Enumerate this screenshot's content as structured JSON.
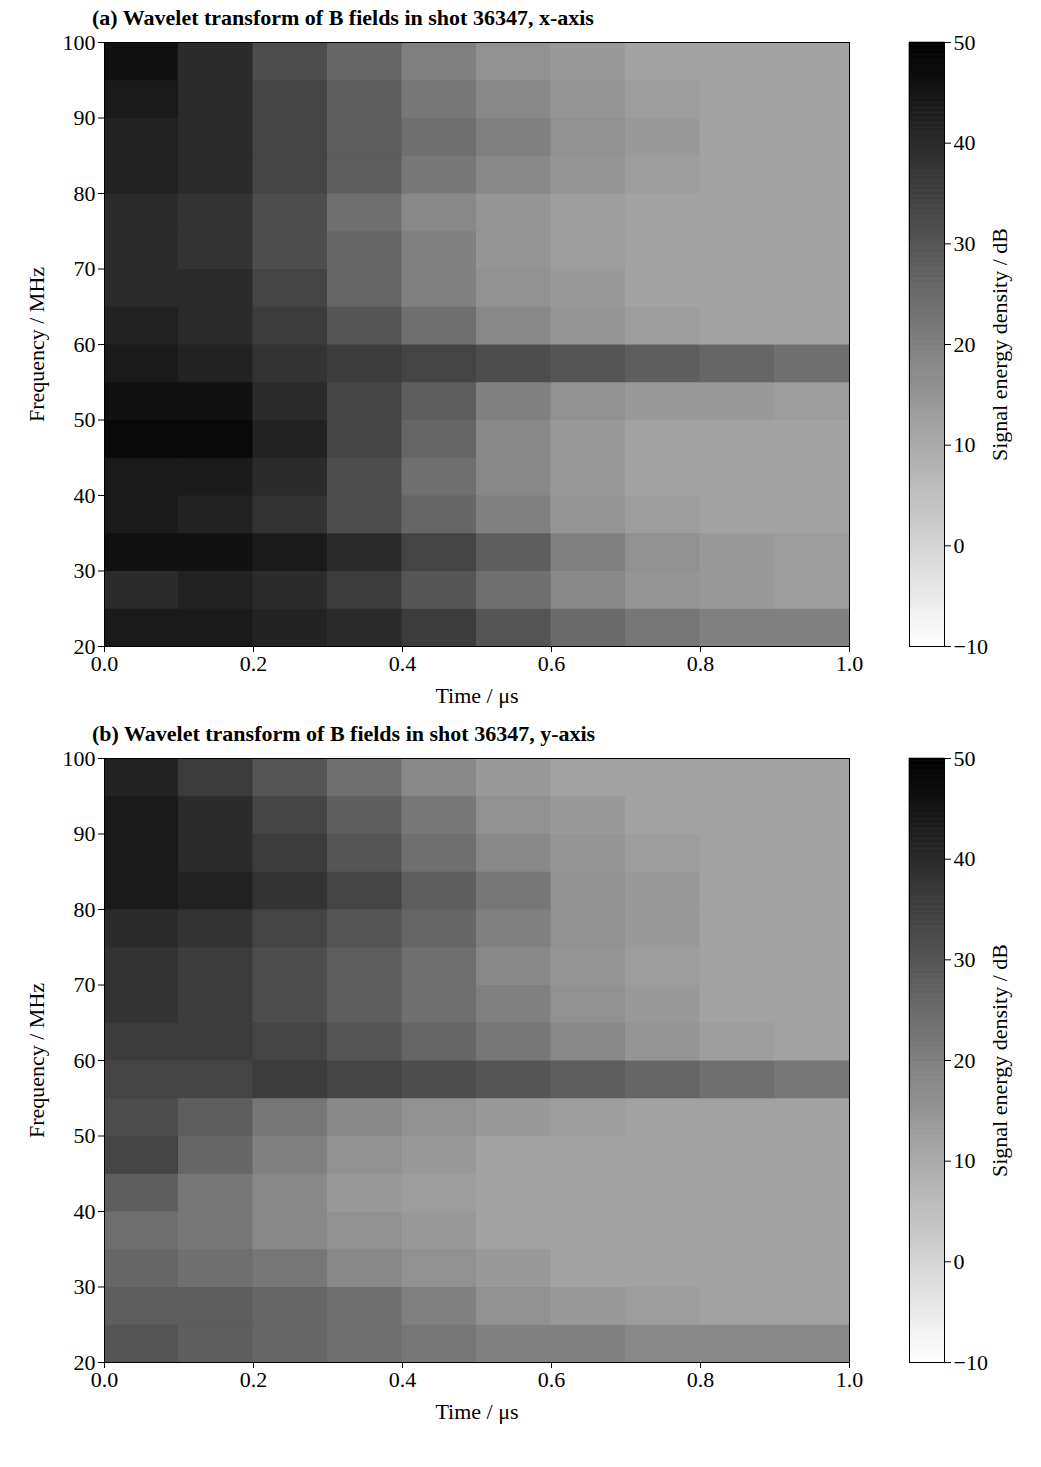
{
  "chart_data": [
    {
      "type": "heatmap",
      "title": "(a) Wavelet transform of B fields in shot 36347, x-axis",
      "x_label": "Time / μs",
      "y_label": "Frequency / MHz",
      "xlim": [
        0,
        1
      ],
      "xticks": [
        0,
        0.2,
        0.4,
        0.6,
        0.8,
        1
      ],
      "ylim": [
        20,
        100
      ],
      "yticks": [
        20,
        30,
        40,
        50,
        60,
        70,
        80,
        90,
        100
      ],
      "x_bins": [
        0,
        0.1,
        0.2,
        0.3,
        0.4,
        0.5,
        0.6,
        0.7,
        0.8,
        0.9,
        1
      ],
      "y_bins": [
        20,
        25,
        30,
        35,
        40,
        45,
        50,
        55,
        60,
        65,
        70,
        75,
        80,
        85,
        90,
        95,
        100
      ],
      "values": [
        [
          44,
          44,
          42,
          40,
          36,
          30,
          25,
          22,
          20,
          20
        ],
        [
          40,
          42,
          40,
          36,
          30,
          24,
          18,
          15,
          14,
          13
        ],
        [
          46,
          46,
          44,
          40,
          34,
          28,
          20,
          16,
          14,
          13
        ],
        [
          44,
          42,
          38,
          32,
          26,
          20,
          15,
          13,
          12,
          12
        ],
        [
          44,
          44,
          40,
          32,
          24,
          18,
          14,
          12,
          12,
          12
        ],
        [
          48,
          48,
          42,
          34,
          26,
          18,
          14,
          12,
          12,
          12
        ],
        [
          46,
          46,
          40,
          34,
          28,
          20,
          16,
          14,
          14,
          13
        ],
        [
          44,
          42,
          38,
          36,
          34,
          32,
          30,
          28,
          26,
          24
        ],
        [
          42,
          40,
          36,
          30,
          24,
          18,
          15,
          13,
          12,
          12
        ],
        [
          40,
          40,
          34,
          26,
          20,
          16,
          14,
          12,
          12,
          12
        ],
        [
          40,
          38,
          32,
          26,
          20,
          15,
          13,
          12,
          12,
          12
        ],
        [
          40,
          38,
          32,
          24,
          18,
          15,
          13,
          12,
          12,
          12
        ],
        [
          42,
          40,
          34,
          28,
          22,
          18,
          15,
          13,
          12,
          12
        ],
        [
          42,
          40,
          34,
          28,
          24,
          20,
          16,
          14,
          12,
          12
        ],
        [
          44,
          40,
          34,
          28,
          22,
          18,
          15,
          13,
          12,
          12
        ],
        [
          46,
          40,
          32,
          26,
          20,
          16,
          14,
          12,
          12,
          12
        ]
      ],
      "colorbar": {
        "range": [
          -10,
          50
        ],
        "ticks": [
          -10,
          0,
          10,
          20,
          30,
          40,
          50
        ],
        "label": "Signal energy density / dB"
      }
    },
    {
      "type": "heatmap",
      "title": "(b) Wavelet transform of B fields in shot 36347, y-axis",
      "x_label": "Time / μs",
      "y_label": "Frequency / MHz",
      "xlim": [
        0,
        1
      ],
      "xticks": [
        0,
        0.2,
        0.4,
        0.6,
        0.8,
        1
      ],
      "ylim": [
        20,
        100
      ],
      "yticks": [
        20,
        30,
        40,
        50,
        60,
        70,
        80,
        90,
        100
      ],
      "x_bins": [
        0,
        0.1,
        0.2,
        0.3,
        0.4,
        0.5,
        0.6,
        0.7,
        0.8,
        0.9,
        1
      ],
      "y_bins": [
        20,
        25,
        30,
        35,
        40,
        45,
        50,
        55,
        60,
        65,
        70,
        75,
        80,
        85,
        90,
        95,
        100
      ],
      "values": [
        [
          30,
          28,
          26,
          24,
          22,
          20,
          20,
          18,
          18,
          18
        ],
        [
          28,
          28,
          26,
          24,
          20,
          16,
          14,
          13,
          12,
          12
        ],
        [
          26,
          24,
          22,
          18,
          16,
          14,
          12,
          12,
          12,
          12
        ],
        [
          24,
          22,
          18,
          16,
          14,
          12,
          12,
          12,
          12,
          12
        ],
        [
          28,
          22,
          18,
          14,
          13,
          12,
          12,
          12,
          12,
          12
        ],
        [
          34,
          26,
          20,
          16,
          14,
          12,
          12,
          12,
          12,
          12
        ],
        [
          32,
          28,
          22,
          18,
          16,
          14,
          13,
          12,
          12,
          12
        ],
        [
          34,
          34,
          36,
          34,
          32,
          30,
          28,
          26,
          24,
          22
        ],
        [
          36,
          36,
          34,
          30,
          26,
          22,
          18,
          15,
          13,
          12
        ],
        [
          38,
          36,
          32,
          28,
          24,
          20,
          16,
          14,
          12,
          12
        ],
        [
          38,
          36,
          32,
          28,
          24,
          18,
          15,
          13,
          12,
          12
        ],
        [
          40,
          38,
          34,
          30,
          26,
          20,
          16,
          14,
          12,
          12
        ],
        [
          44,
          42,
          38,
          34,
          28,
          22,
          16,
          14,
          12,
          12
        ],
        [
          44,
          40,
          36,
          30,
          24,
          18,
          15,
          13,
          12,
          12
        ],
        [
          44,
          40,
          34,
          28,
          22,
          16,
          14,
          12,
          12,
          12
        ],
        [
          42,
          36,
          30,
          24,
          18,
          14,
          12,
          12,
          12,
          12
        ]
      ],
      "colorbar": {
        "range": [
          -10,
          50
        ],
        "ticks": [
          -10,
          0,
          10,
          20,
          30,
          40,
          50
        ],
        "label": "Signal energy density / dB"
      }
    }
  ]
}
